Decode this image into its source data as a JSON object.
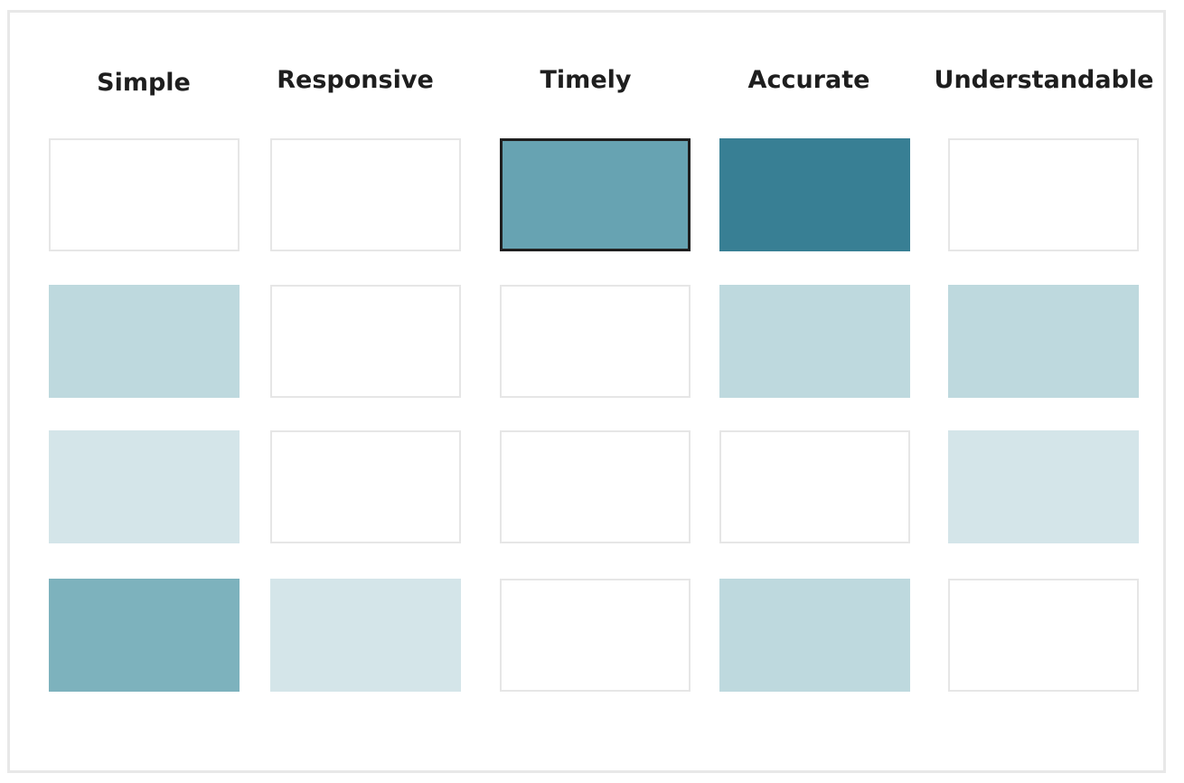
{
  "columns": [
    {
      "label": "Simple"
    },
    {
      "label": "Responsive"
    },
    {
      "label": "Timely"
    },
    {
      "label": "Accurate"
    },
    {
      "label": "Understandable"
    }
  ],
  "levels": {
    "0": "#ffffff",
    "1": "#d4e5e9",
    "2": "#bed9de",
    "3": "#7db2bd",
    "4": "#67a3b2",
    "5": "#387f94"
  },
  "grid": [
    [
      0,
      0,
      4,
      5,
      0
    ],
    [
      2,
      0,
      0,
      2,
      2
    ],
    [
      1,
      0,
      0,
      0,
      1
    ],
    [
      3,
      1,
      0,
      2,
      0
    ]
  ],
  "selected": {
    "row": 0,
    "col": 2
  }
}
